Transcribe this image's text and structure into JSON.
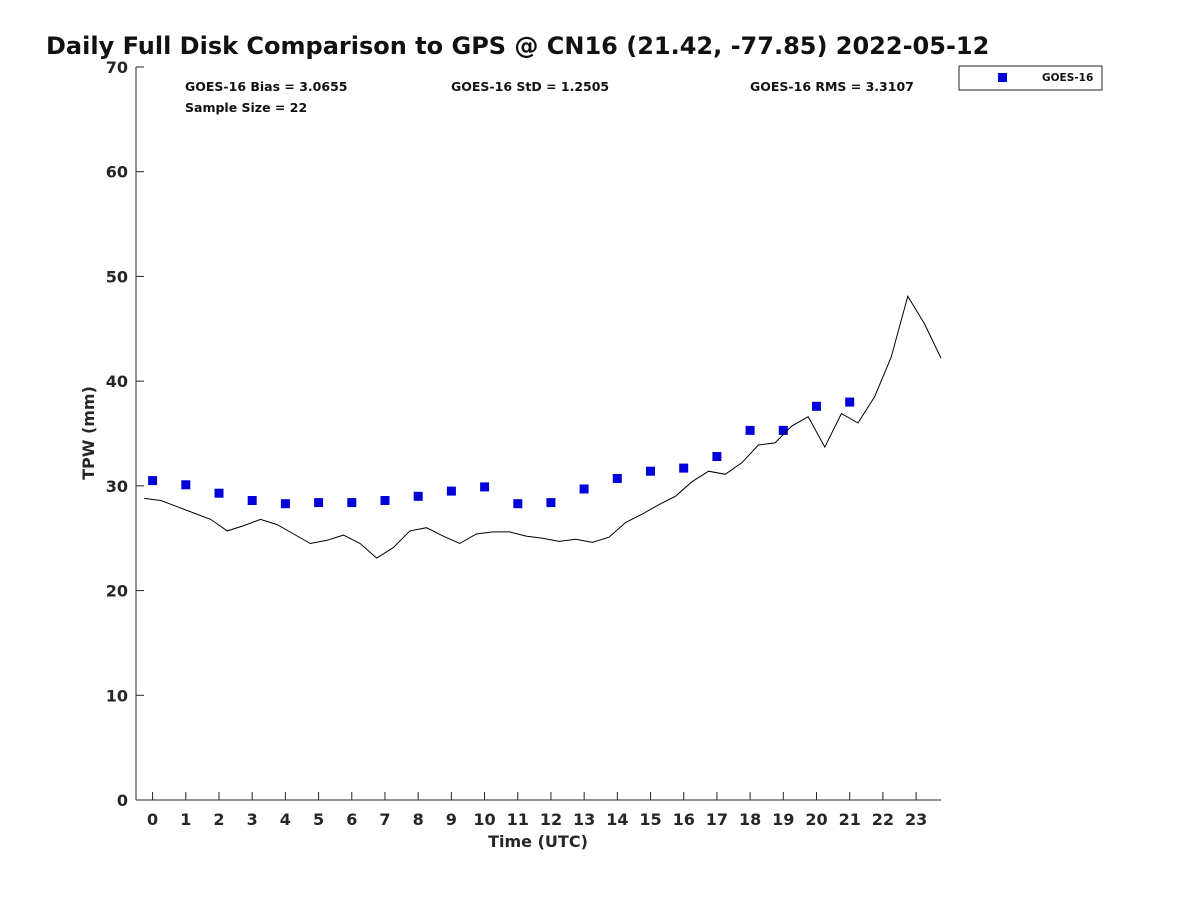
{
  "chart_data": {
    "type": "scatter",
    "title": "Daily Full Disk Comparison to GPS @ CN16 (21.42, -77.85) 2022-05-12",
    "xlabel": "Time (UTC)",
    "ylabel": "TPW (mm)",
    "xlim": [
      -0.5,
      23.75
    ],
    "ylim": [
      0,
      70
    ],
    "xticks": [
      "0",
      "1",
      "2",
      "3",
      "4",
      "5",
      "6",
      "7",
      "8",
      "9",
      "10",
      "11",
      "12",
      "13",
      "14",
      "15",
      "16",
      "17",
      "18",
      "19",
      "20",
      "21",
      "22",
      "23"
    ],
    "yticks": [
      "0",
      "10",
      "20",
      "30",
      "40",
      "50",
      "60",
      "70"
    ],
    "grid": false,
    "legend_position": "top-right outside",
    "series": [
      {
        "name": "GOES-16",
        "kind": "scatter",
        "color": "#0000d8",
        "marker": "square",
        "x": [
          0,
          1,
          2,
          3,
          4,
          5,
          6,
          7,
          8,
          9,
          10,
          11,
          12,
          13,
          14,
          15,
          16,
          17,
          18,
          19,
          20,
          21
        ],
        "y": [
          30.5,
          30.1,
          29.3,
          28.6,
          28.3,
          28.4,
          28.4,
          28.6,
          29.0,
          29.5,
          29.9,
          28.3,
          28.4,
          29.7,
          30.7,
          31.4,
          31.7,
          32.8,
          35.3,
          35.3,
          37.6,
          38.0
        ]
      },
      {
        "kind": "line",
        "color": "#000000",
        "x": [
          -0.25,
          0.25,
          0.75,
          1.25,
          1.75,
          2.25,
          2.75,
          3.25,
          3.75,
          4.25,
          4.75,
          5.25,
          5.75,
          6.25,
          6.75,
          7.25,
          7.75,
          8.25,
          8.75,
          9.25,
          9.75,
          10.25,
          10.75,
          11.25,
          11.75,
          12.25,
          12.75,
          13.25,
          13.75,
          14.25,
          14.75,
          15.25,
          15.75,
          16.25,
          16.75,
          17.25,
          17.75,
          18.25,
          18.75,
          19.25,
          19.75,
          20.25,
          20.75,
          21.25,
          21.75,
          22.25,
          22.75,
          23.25,
          23.75
        ],
        "y": [
          28.8,
          28.6,
          28.0,
          27.4,
          26.8,
          25.7,
          26.2,
          26.8,
          26.3,
          25.4,
          24.5,
          24.8,
          25.3,
          24.5,
          23.1,
          24.1,
          25.7,
          26.0,
          25.2,
          24.5,
          25.4,
          25.6,
          25.6,
          25.2,
          25.0,
          24.7,
          24.9,
          24.6,
          25.1,
          26.5,
          27.3,
          28.2,
          29.0,
          30.4,
          31.4,
          31.1,
          32.2,
          33.9,
          34.1,
          35.7,
          36.6,
          33.7,
          36.9,
          36.0,
          38.5,
          42.3,
          48.1,
          45.5,
          42.2
        ]
      }
    ],
    "annotations": {
      "bias": "GOES-16 Bias = 3.0655",
      "std": "GOES-16 StD = 1.2505",
      "rms": "GOES-16 RMS = 3.3107",
      "sample_size": "Sample Size = 22"
    }
  }
}
